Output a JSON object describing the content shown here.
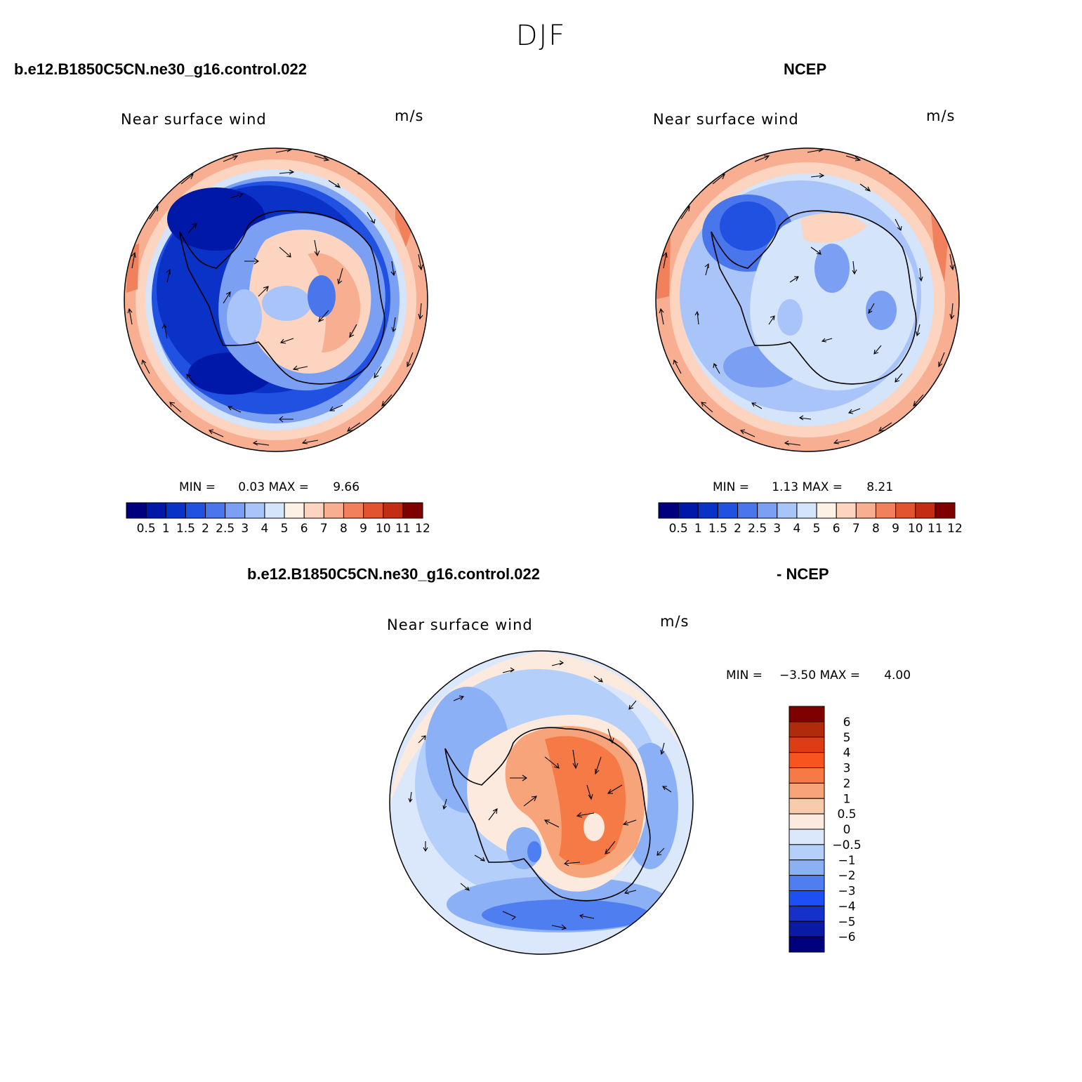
{
  "figure": {
    "season": "DJF"
  },
  "panels": [
    {
      "case": "b.e12.B1850C5CN.ne30_g16.control.022",
      "variable": "Near surface wind",
      "units": "m/s",
      "min_label": "MIN =",
      "min_value": "0.03",
      "max_label": "MAX =",
      "max_value": "9.66",
      "colorbar_labels": [
        "0.5",
        "1",
        "1.5",
        "2",
        "2.5",
        "3",
        "4",
        "5",
        "6",
        "7",
        "8",
        "9",
        "10",
        "11",
        "12"
      ],
      "colorbar_colors": [
        "#00007f",
        "#0018a8",
        "#0a32c7",
        "#2051e0",
        "#4a76ec",
        "#7ba0f3",
        "#a9c4f8",
        "#d3e4fb",
        "#fdf1e6",
        "#fcd4c0",
        "#f8ae90",
        "#f0815c",
        "#e25330",
        "#c32d14",
        "#7f0000"
      ],
      "colorbar_orientation": "horizontal"
    },
    {
      "case": "NCEP",
      "variable": "Near surface wind",
      "units": "m/s",
      "min_label": "MIN =",
      "min_value": "1.13",
      "max_label": "MAX =",
      "max_value": "8.21",
      "colorbar_labels": [
        "0.5",
        "1",
        "1.5",
        "2",
        "2.5",
        "3",
        "4",
        "5",
        "6",
        "7",
        "8",
        "9",
        "10",
        "11",
        "12"
      ],
      "colorbar_colors": [
        "#00007f",
        "#0018a8",
        "#0a32c7",
        "#2051e0",
        "#4a76ec",
        "#7ba0f3",
        "#a9c4f8",
        "#d3e4fb",
        "#fdf1e6",
        "#fcd4c0",
        "#f8ae90",
        "#f0815c",
        "#e25330",
        "#c32d14",
        "#7f0000"
      ],
      "colorbar_orientation": "horizontal"
    },
    {
      "case": "b.e12.B1850C5CN.ne30_g16.control.022",
      "case_suffix": "- NCEP",
      "variable": "Near surface wind",
      "units": "m/s",
      "min_label": "MIN =",
      "min_value": "−3.50",
      "max_label": "MAX =",
      "max_value": "4.00",
      "colorbar_labels": [
        "6",
        "5",
        "4",
        "3",
        "2",
        "1",
        "0.5",
        "0",
        "−0.5",
        "−1",
        "−2",
        "−3",
        "−4",
        "−5",
        "−6"
      ],
      "colorbar_colors": [
        "#7f0000",
        "#b02a0c",
        "#dd3d13",
        "#f9531e",
        "#f57a45",
        "#f7a47a",
        "#f9cbad",
        "#fdeade",
        "#dbe8fb",
        "#b4cffa",
        "#8bb0f5",
        "#4f7ef0",
        "#1d4ff4",
        "#1531c8",
        "#0a1aa2",
        "#00007f"
      ],
      "colorbar_orientation": "vertical"
    }
  ]
}
